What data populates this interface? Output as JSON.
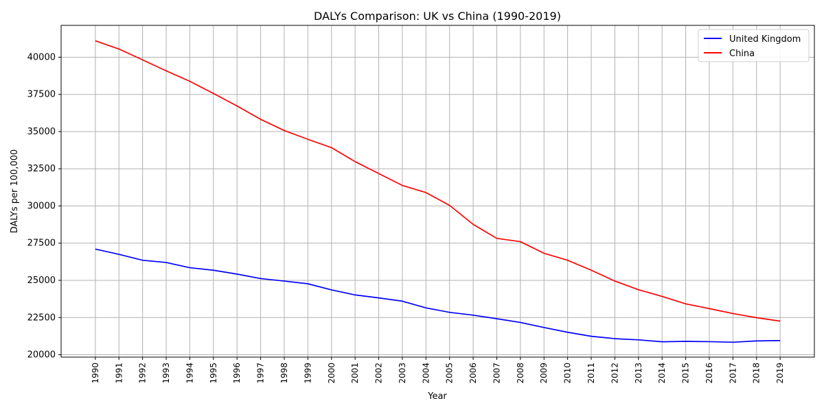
{
  "chart_data": {
    "type": "line",
    "title": "DALYs Comparison: UK vs China (1990-2019)",
    "xlabel": "Year",
    "ylabel": "DALYs per 100,000",
    "x": [
      1990,
      1991,
      1992,
      1993,
      1994,
      1995,
      1996,
      1997,
      1998,
      1999,
      2000,
      2001,
      2002,
      2003,
      2004,
      2005,
      2006,
      2007,
      2008,
      2009,
      2010,
      2011,
      2012,
      2013,
      2014,
      2015,
      2016,
      2017,
      2018,
      2019
    ],
    "xlim": [
      1988.55,
      2020.45
    ],
    "ylim": [
      19840,
      42140
    ],
    "yticks": [
      20000,
      22500,
      25000,
      27500,
      30000,
      32500,
      35000,
      37500,
      40000
    ],
    "grid": true,
    "legend_position": "top-right",
    "series": [
      {
        "name": "United Kingdom",
        "color": "#0000ff",
        "values": [
          27100,
          26750,
          26350,
          26200,
          25850,
          25680,
          25420,
          25120,
          24950,
          24770,
          24360,
          24020,
          23820,
          23600,
          23150,
          22850,
          22660,
          22420,
          22170,
          21830,
          21510,
          21240,
          21080,
          21000,
          20870,
          20900,
          20880,
          20840,
          20930,
          20950
        ]
      },
      {
        "name": "China",
        "color": "#ff0000",
        "values": [
          41100,
          40550,
          39820,
          39080,
          38380,
          37560,
          36720,
          35820,
          35070,
          34480,
          33920,
          32980,
          32180,
          31380,
          30900,
          30040,
          28760,
          27820,
          27600,
          26820,
          26350,
          25680,
          24950,
          24370,
          23920,
          23420,
          23100,
          22770,
          22490,
          22260
        ]
      }
    ]
  }
}
